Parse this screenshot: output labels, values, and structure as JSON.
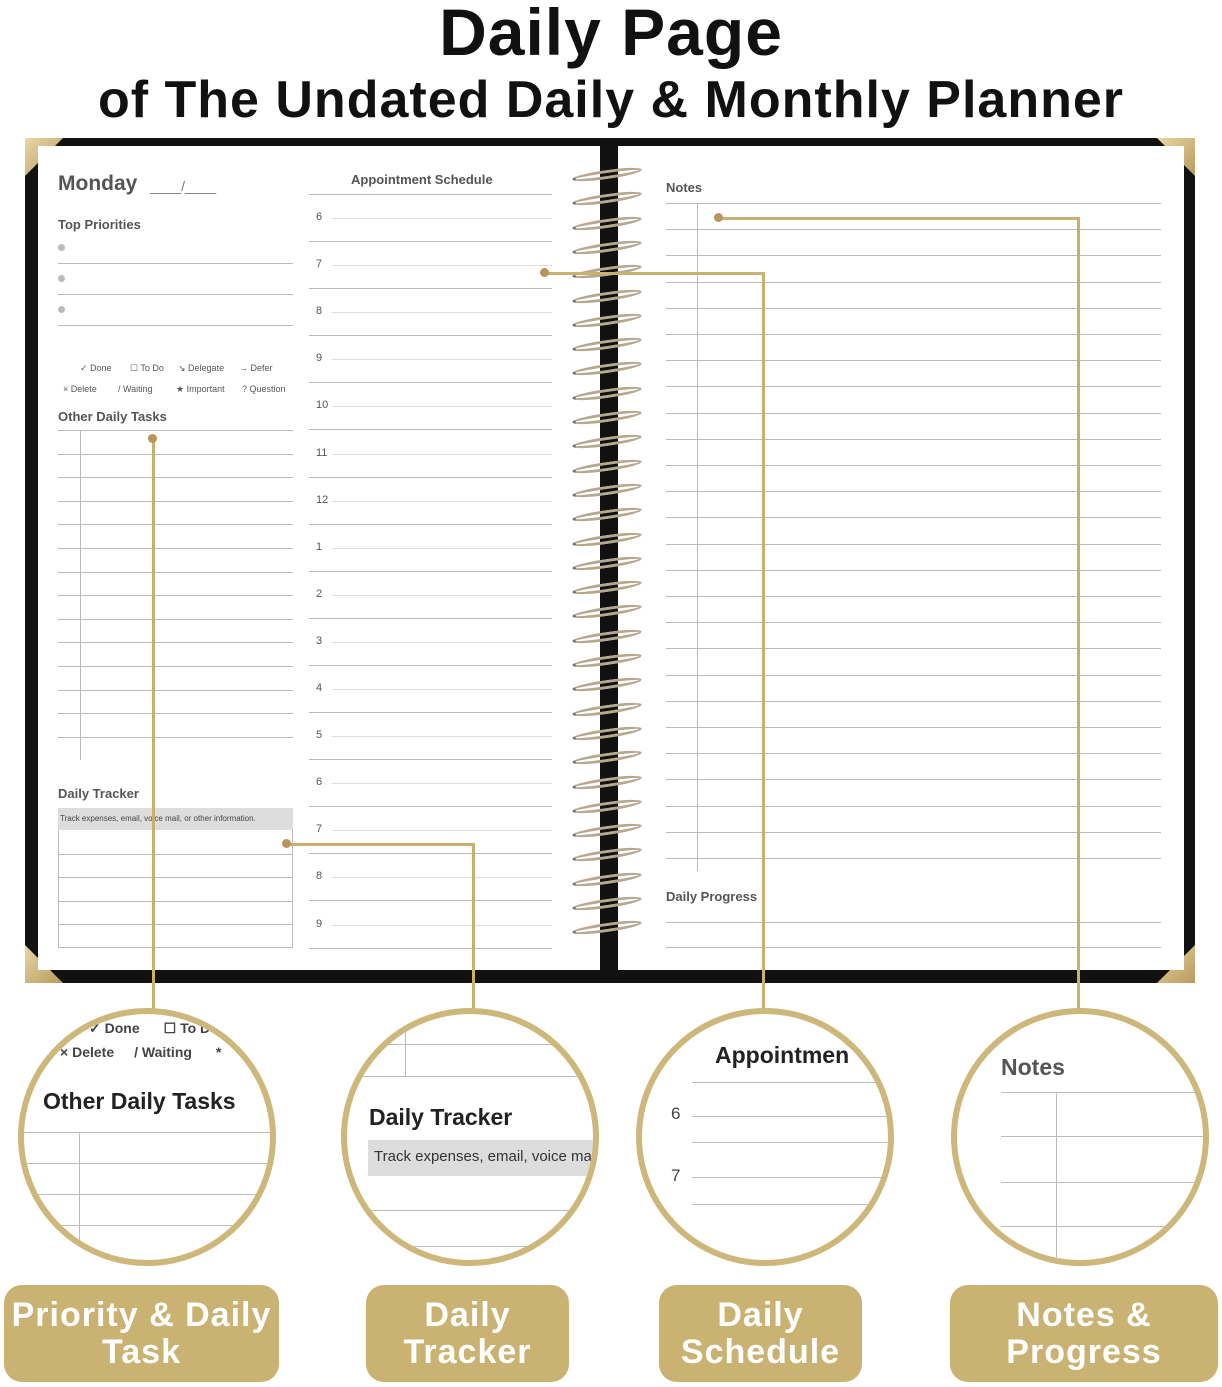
{
  "header": {
    "title": "Daily Page",
    "subtitle": "of The Undated Daily & Monthly Planner"
  },
  "left_page": {
    "day": "Monday",
    "date_blank": "____/____",
    "top_priorities": "Top Priorities",
    "legend": [
      [
        "✓",
        "Done"
      ],
      [
        "☐",
        "To Do"
      ],
      [
        "↘",
        "Delegate"
      ],
      [
        "→",
        "Defer"
      ],
      [
        "×",
        "Delete"
      ],
      [
        "/",
        "Waiting"
      ],
      [
        "★",
        "Important"
      ],
      [
        "?",
        "Question"
      ]
    ],
    "other_tasks": "Other Daily Tasks",
    "daily_tracker": "Daily Tracker",
    "tracker_hint": "Track expenses, email, voice mail, or other information."
  },
  "schedule": {
    "title": "Appointment Schedule",
    "hours": [
      "6",
      "7",
      "8",
      "9",
      "10",
      "11",
      "12",
      "1",
      "2",
      "3",
      "4",
      "5",
      "6",
      "7",
      "8",
      "9"
    ]
  },
  "right_page": {
    "notes": "Notes",
    "daily_progress": "Daily Progress"
  },
  "zooms": {
    "z1": {
      "legend1": "Done",
      "legend2": "To Do",
      "legend3": "Delete",
      "legend4": "Waiting",
      "title": "Other Daily Tasks"
    },
    "z2": {
      "title": "Daily Tracker",
      "hint": "Track expenses, email, voice mai"
    },
    "z3": {
      "title": "Appointmen",
      "h1": "6",
      "h2": "7"
    },
    "z4": {
      "title": "Notes"
    }
  },
  "labels": [
    "Priority & Daily Task",
    "Daily Tracker",
    "Daily Schedule",
    "Notes & Progress"
  ],
  "colors": {
    "gold": "#c9b272",
    "cover": "#111111"
  }
}
